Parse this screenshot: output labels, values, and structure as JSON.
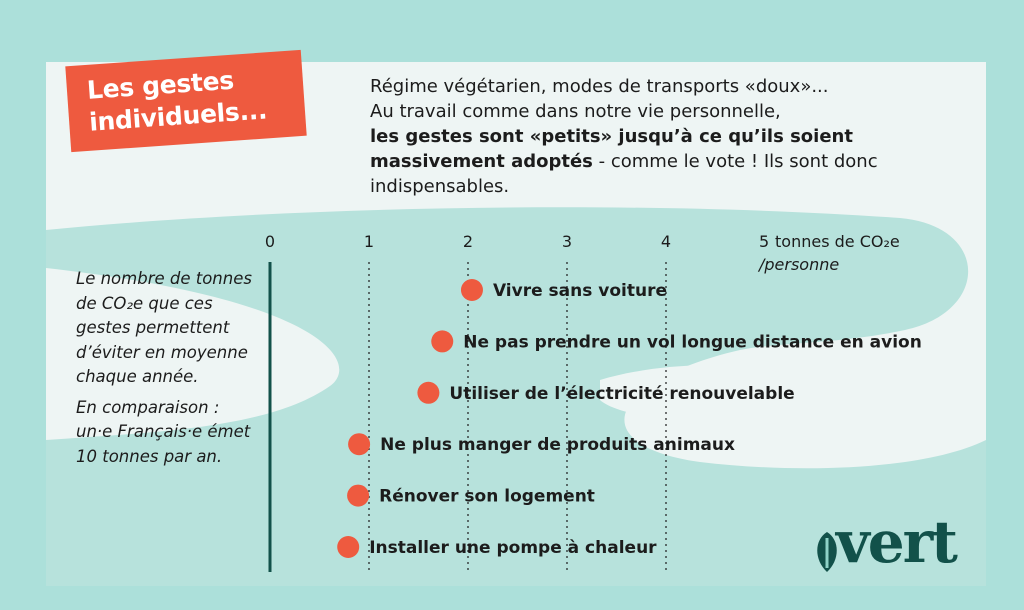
{
  "title": {
    "line1": "Les gestes",
    "line2": "individuels..."
  },
  "intro": {
    "line1": "Régime végétarien, modes de transports «doux»...",
    "line2": "Au travail comme dans notre vie personnelle,",
    "bold_text": "les gestes sont «petits» jusqu’à ce qu’ils soient massivement adoptés",
    "after_bold": " - comme le vote ! Ils sont donc indispensables."
  },
  "sidebar": {
    "description": "Le nombre de tonnes de CO₂e que ces gestes permettent d’éviter en moyenne chaque année.",
    "comparison": "En comparaison : un·e Français·e émet 10 tonnes par an."
  },
  "logo": {
    "text": "vert"
  },
  "colors": {
    "background": "#ace0da",
    "card": "#eef5f4",
    "swoosh": "#b7e2dc",
    "accent_orange": "#ee5a3f",
    "axis_green": "#12514a"
  },
  "chart_data": {
    "type": "scatter",
    "xlim": [
      0,
      5
    ],
    "xticks": [
      "0",
      "1",
      "2",
      "3",
      "4",
      "5"
    ],
    "unit_label": "tonnes de CO₂e",
    "unit_label_line2": "/personne",
    "points": [
      {
        "label": "Vivre sans voiture",
        "x": 2.04
      },
      {
        "label": "Ne pas prendre un vol longue distance en avion",
        "x": 1.74
      },
      {
        "label": "Utiliser de l’électricité renouvelable",
        "x": 1.6
      },
      {
        "label": "Ne plus manger de produits animaux",
        "x": 0.9
      },
      {
        "label": "Rénover son logement",
        "x": 0.89
      },
      {
        "label": "Installer une pompe à chaleur",
        "x": 0.79
      }
    ]
  }
}
